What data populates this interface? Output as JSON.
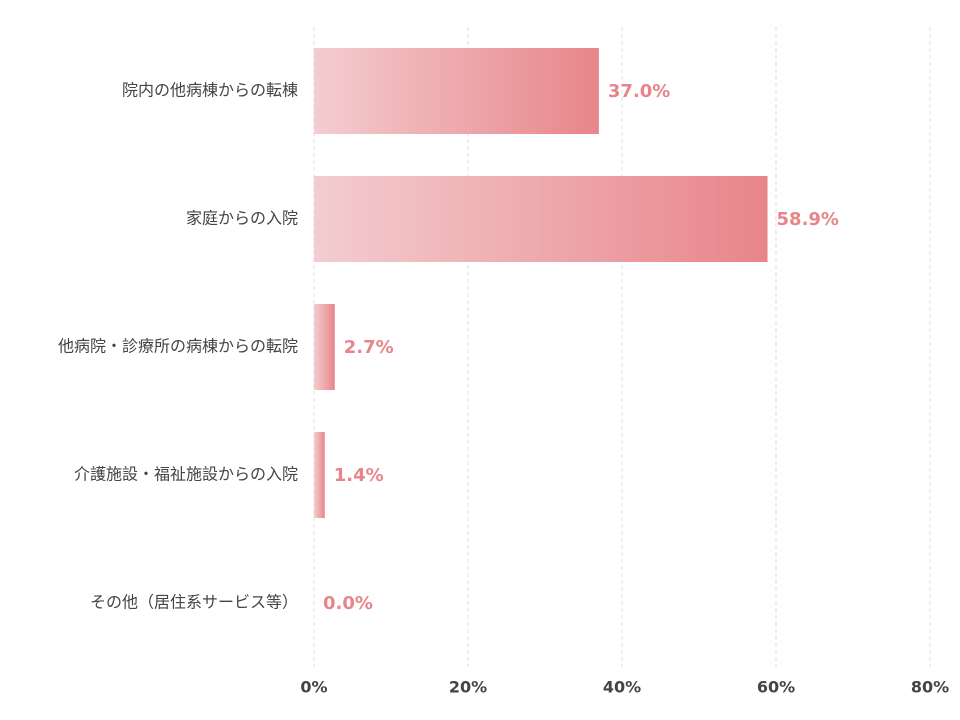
{
  "chart_data": {
    "type": "bar",
    "orientation": "horizontal",
    "categories": [
      "院内の他病棟からの転棟",
      "家庭からの入院",
      "他病院・診療所の病棟からの転院",
      "介護施設・福祉施設からの入院",
      "その他（居住系サービス等）"
    ],
    "values": [
      37.0,
      58.9,
      2.7,
      1.4,
      0.0
    ],
    "value_labels": [
      "37.0%",
      "58.9%",
      "2.7%",
      "1.4%",
      "0.0%"
    ],
    "colors": [
      "#f3cdd0",
      "#e8858a"
    ],
    "xlim": [
      0,
      80
    ],
    "xticks": [
      {
        "value": 0,
        "label": "0%"
      },
      {
        "value": 20,
        "label": "20%"
      },
      {
        "value": 40,
        "label": "40%"
      },
      {
        "value": 60,
        "label": "60%"
      },
      {
        "value": 80,
        "label": "80%"
      }
    ],
    "grid": true
  }
}
